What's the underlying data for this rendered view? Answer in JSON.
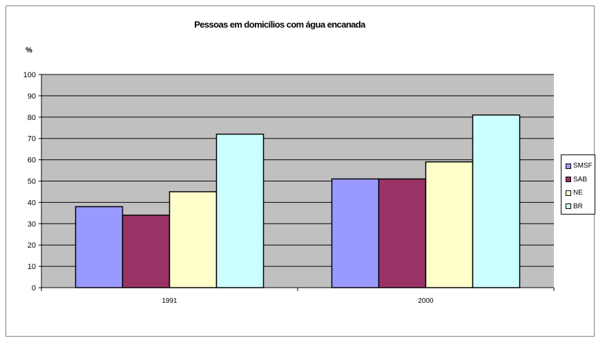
{
  "chart_data": {
    "type": "bar",
    "title": "Pessoas em domicílios com água encanada",
    "ylabel": "%",
    "xlabel": "",
    "categories": [
      "1991",
      "2000"
    ],
    "series": [
      {
        "name": "SMSF",
        "values": [
          38,
          51
        ],
        "color": "#9999ff"
      },
      {
        "name": "SAB",
        "values": [
          34,
          51
        ],
        "color": "#993366"
      },
      {
        "name": "NE",
        "values": [
          45,
          59
        ],
        "color": "#ffffcc"
      },
      {
        "name": "BR",
        "values": [
          72,
          81
        ],
        "color": "#ccffff"
      }
    ],
    "ylim": [
      0,
      100
    ],
    "yticks": [
      0,
      10,
      20,
      30,
      40,
      50,
      60,
      70,
      80,
      90,
      100
    ],
    "grid": true,
    "plot_background": "#c0c0c0",
    "legend_position": "right"
  }
}
